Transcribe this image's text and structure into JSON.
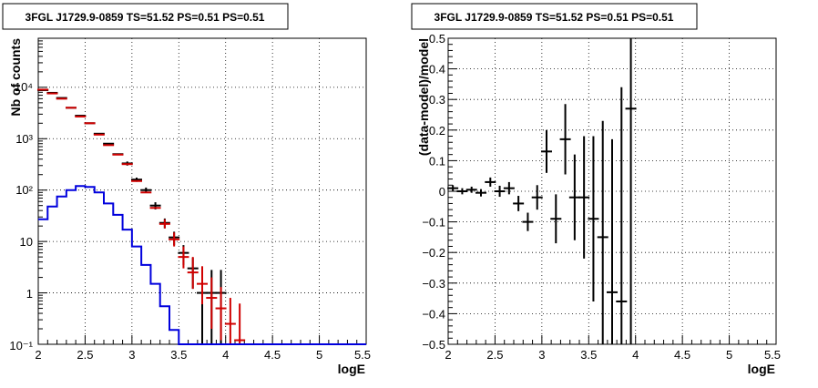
{
  "chart_data": [
    {
      "type": "histogram",
      "title": "3FGL J1729.9-0859 TS=51.52 PS=0.51 PS=0.51",
      "xlabel": "logE",
      "ylabel": "Nb of counts",
      "xlim": [
        2,
        5.5
      ],
      "ylim": [
        0.1,
        90000
      ],
      "yscale": "log",
      "grid": true,
      "x_ticks": [
        "2",
        "2.5",
        "3",
        "3.5",
        "4",
        "4.5",
        "5",
        "5.5"
      ],
      "y_ticks": [
        "10⁻¹",
        "1",
        "10",
        "10²",
        "10³",
        "10⁴"
      ],
      "series": [
        {
          "color": "#000000",
          "style": "errorbar",
          "points": [
            {
              "x": 2.05,
              "y": 8800,
              "err": [
                0,
                0
              ]
            },
            {
              "x": 2.15,
              "y": 7800,
              "err": [
                0,
                0
              ]
            },
            {
              "x": 2.25,
              "y": 6200,
              "err": [
                0,
                0
              ]
            },
            {
              "x": 2.35,
              "y": 4000,
              "err": [
                0,
                0
              ]
            },
            {
              "x": 2.45,
              "y": 2800,
              "err": [
                0,
                0
              ]
            },
            {
              "x": 2.55,
              "y": 2000,
              "err": [
                0,
                0
              ]
            },
            {
              "x": 2.65,
              "y": 1250,
              "err": [
                0,
                0
              ]
            },
            {
              "x": 2.75,
              "y": 800,
              "err": [
                0,
                0
              ]
            },
            {
              "x": 2.85,
              "y": 500,
              "err": [
                0,
                0
              ]
            },
            {
              "x": 2.95,
              "y": 330,
              "err": [
                30,
                30
              ]
            },
            {
              "x": 3.05,
              "y": 160,
              "err": [
                15,
                15
              ]
            },
            {
              "x": 3.15,
              "y": 100,
              "err": [
                12,
                12
              ]
            },
            {
              "x": 3.25,
              "y": 50,
              "err": [
                8,
                8
              ]
            },
            {
              "x": 3.35,
              "y": 23,
              "err": [
                5,
                5
              ]
            },
            {
              "x": 3.45,
              "y": 12,
              "err": [
                3.5,
                3.5
              ]
            },
            {
              "x": 3.55,
              "y": 6,
              "err": [
                2.5,
                2.5
              ]
            },
            {
              "x": 3.65,
              "y": 3,
              "err": [
                1.8,
                1.8
              ]
            },
            {
              "x": 3.75,
              "y": 1,
              "err": [
                0.9,
                1.8
              ]
            },
            {
              "x": 3.85,
              "y": 1,
              "err": [
                0.9,
                1.8
              ]
            },
            {
              "x": 3.95,
              "y": 1,
              "err": [
                0.9,
                1.8
              ]
            }
          ]
        },
        {
          "color": "#d00000",
          "style": "errorbar",
          "points": [
            {
              "x": 2.05,
              "y": 9000,
              "err": [
                0,
                0
              ]
            },
            {
              "x": 2.15,
              "y": 7600,
              "err": [
                0,
                0
              ]
            },
            {
              "x": 2.25,
              "y": 6000,
              "err": [
                0,
                0
              ]
            },
            {
              "x": 2.35,
              "y": 4000,
              "err": [
                0,
                0
              ]
            },
            {
              "x": 2.45,
              "y": 2700,
              "err": [
                0,
                0
              ]
            },
            {
              "x": 2.55,
              "y": 2000,
              "err": [
                0,
                0
              ]
            },
            {
              "x": 2.65,
              "y": 1200,
              "err": [
                0,
                0
              ]
            },
            {
              "x": 2.75,
              "y": 750,
              "err": [
                0,
                0
              ]
            },
            {
              "x": 2.85,
              "y": 490,
              "err": [
                0,
                0
              ]
            },
            {
              "x": 2.95,
              "y": 320,
              "err": [
                0,
                0
              ]
            },
            {
              "x": 3.05,
              "y": 150,
              "err": [
                0,
                0
              ]
            },
            {
              "x": 3.15,
              "y": 90,
              "err": [
                0,
                0
              ]
            },
            {
              "x": 3.25,
              "y": 45,
              "err": [
                0,
                0
              ]
            },
            {
              "x": 3.35,
              "y": 22,
              "err": [
                4,
                5
              ]
            },
            {
              "x": 3.45,
              "y": 11,
              "err": [
                3,
                4
              ]
            },
            {
              "x": 3.55,
              "y": 5,
              "err": [
                2,
                3
              ]
            },
            {
              "x": 3.65,
              "y": 2.5,
              "err": [
                1.3,
                2.5
              ]
            },
            {
              "x": 3.75,
              "y": 1.5,
              "err": [
                0.9,
                1.8
              ]
            },
            {
              "x": 3.85,
              "y": 0.8,
              "err": [
                0.6,
                1.2
              ]
            },
            {
              "x": 3.95,
              "y": 0.5,
              "err": [
                0.38,
                0.8
              ]
            },
            {
              "x": 4.05,
              "y": 0.25,
              "err": [
                0.15,
                0.55
              ]
            },
            {
              "x": 4.15,
              "y": 0.12,
              "err": [
                0.02,
                0.5
              ]
            }
          ]
        },
        {
          "color": "#0000dd",
          "style": "step",
          "bin_width": 0.1,
          "points": [
            {
              "x": 2.0,
              "y": 27
            },
            {
              "x": 2.1,
              "y": 48
            },
            {
              "x": 2.2,
              "y": 75
            },
            {
              "x": 2.3,
              "y": 100
            },
            {
              "x": 2.4,
              "y": 120
            },
            {
              "x": 2.5,
              "y": 115
            },
            {
              "x": 2.6,
              "y": 90
            },
            {
              "x": 2.7,
              "y": 55
            },
            {
              "x": 2.8,
              "y": 33
            },
            {
              "x": 2.9,
              "y": 17
            },
            {
              "x": 3.0,
              "y": 8
            },
            {
              "x": 3.1,
              "y": 3.5
            },
            {
              "x": 3.2,
              "y": 1.5
            },
            {
              "x": 3.3,
              "y": 0.55
            },
            {
              "x": 3.4,
              "y": 0.19
            },
            {
              "x": 3.5,
              "y": 0.1
            },
            {
              "x": 5.5,
              "y": 0.1
            }
          ]
        }
      ]
    },
    {
      "type": "scatter",
      "title": "3FGL J1729.9-0859 TS=51.52 PS=0.51 PS=0.51",
      "xlabel": "logE",
      "ylabel": "(data-model)/model",
      "xlim": [
        2,
        5.5
      ],
      "ylim": [
        -0.5,
        0.5
      ],
      "grid": true,
      "x_ticks": [
        "2",
        "2.5",
        "3",
        "3.5",
        "4",
        "4.5",
        "5",
        "5.5"
      ],
      "y_ticks": [
        "−0.5",
        "−0.4",
        "−0.3",
        "−0.2",
        "−0.1",
        "0",
        "0.1",
        "0.2",
        "0.3",
        "0.4",
        "0.5"
      ],
      "y_tick_values": [
        -0.5,
        -0.4,
        -0.3,
        -0.2,
        -0.1,
        0,
        0.1,
        0.2,
        0.3,
        0.4,
        0.5
      ],
      "series": [
        {
          "color": "#000000",
          "style": "errorbar",
          "points": [
            {
              "x": 2.05,
              "y": 0.01,
              "err": 0.01
            },
            {
              "x": 2.15,
              "y": 0.0,
              "err": 0.01
            },
            {
              "x": 2.25,
              "y": 0.005,
              "err": 0.01
            },
            {
              "x": 2.35,
              "y": -0.005,
              "err": 0.012
            },
            {
              "x": 2.45,
              "y": 0.03,
              "err": 0.015
            },
            {
              "x": 2.55,
              "y": 0.0,
              "err": 0.018
            },
            {
              "x": 2.65,
              "y": 0.01,
              "err": 0.02
            },
            {
              "x": 2.75,
              "y": -0.04,
              "err": 0.025
            },
            {
              "x": 2.85,
              "y": -0.1,
              "err": 0.03
            },
            {
              "x": 2.95,
              "y": -0.02,
              "err": 0.04
            },
            {
              "x": 3.05,
              "y": 0.13,
              "err": 0.07
            },
            {
              "x": 3.15,
              "y": -0.09,
              "err": 0.08
            },
            {
              "x": 3.25,
              "y": 0.17,
              "err": 0.115
            },
            {
              "x": 3.35,
              "y": -0.02,
              "err": 0.14
            },
            {
              "x": 3.45,
              "y": -0.02,
              "err": 0.2
            },
            {
              "x": 3.55,
              "y": -0.09,
              "err": 0.27
            },
            {
              "x": 3.65,
              "y": -0.15,
              "err": 0.38
            },
            {
              "x": 3.75,
              "y": -0.33,
              "err": 0.5
            },
            {
              "x": 3.85,
              "y": -0.36,
              "err": 0.7
            },
            {
              "x": 3.95,
              "y": 0.27,
              "err": 0.9
            }
          ]
        }
      ]
    }
  ]
}
